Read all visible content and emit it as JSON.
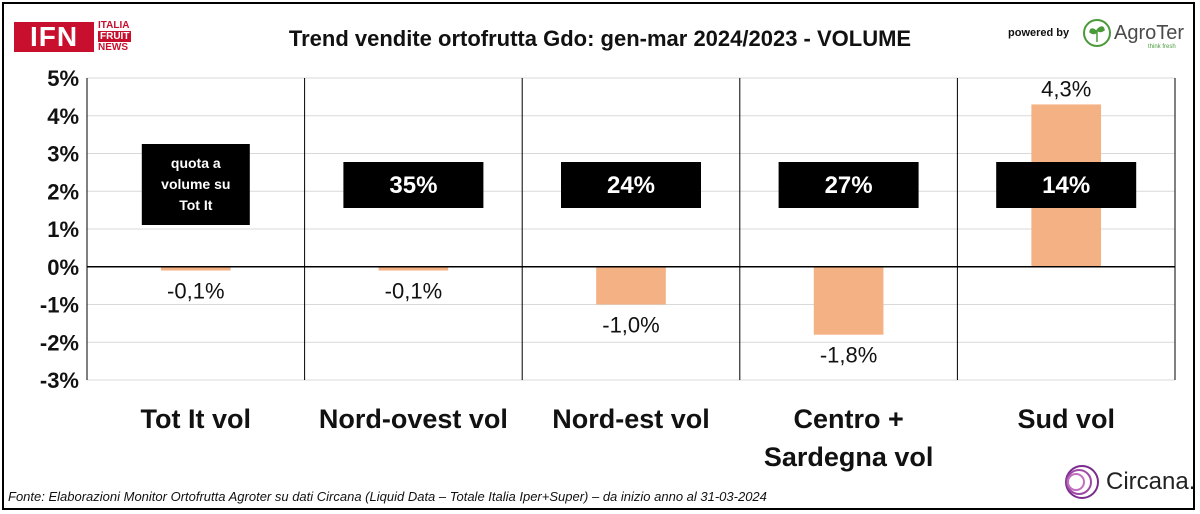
{
  "header": {
    "title": "Trend vendite ortofrutta Gdo: gen-mar 2024/2023 - VOLUME",
    "ifn_logo_main": "IFN",
    "ifn_logo_line1": "ITALIA",
    "ifn_logo_line2": "FRUIT",
    "ifn_logo_line3": "NEWS",
    "powered_by": "powered by",
    "agroter_name": "AgroTer",
    "agroter_tagline": "think fresh"
  },
  "footer": {
    "source": "Fonte: Elaborazioni Monitor Ortofrutta Agroter su dati Circana (Liquid Data – Totale Italia Iper+Super) –  da inizio anno al 31-03-2024",
    "circana_name": "Circana."
  },
  "colors": {
    "bar": "#f4b183",
    "box_bg": "#000000",
    "box_text": "#ffffff",
    "brand_red": "#c8102e",
    "agroter_green": "#4a9a3a",
    "circana_purple": "#7b2d8e"
  },
  "chart_data": {
    "type": "bar",
    "title": "Trend vendite ortofrutta Gdo: gen-mar 2024/2023 - VOLUME",
    "categories": [
      [
        "Tot It  vol"
      ],
      [
        "Nord-ovest vol"
      ],
      [
        "Nord-est vol"
      ],
      [
        "Centro +",
        "Sardegna vol"
      ],
      [
        "Sud vol"
      ]
    ],
    "values": [
      -0.1,
      -0.1,
      -1.0,
      -1.8,
      4.3
    ],
    "value_labels": [
      "-0,1%",
      "-0,1%",
      "-1,0%",
      "-1,8%",
      "4,3%"
    ],
    "share_labels": [
      [
        "quota a",
        "volume su",
        "Tot It"
      ],
      [
        "35%"
      ],
      [
        "24%"
      ],
      [
        "27%"
      ],
      [
        "14%"
      ]
    ],
    "ylim": [
      -3,
      5
    ],
    "yticks": [
      -3,
      -2,
      -1,
      0,
      1,
      2,
      3,
      4,
      5
    ],
    "ytick_labels": [
      "-3%",
      "-2%",
      "-1%",
      "0%",
      "1%",
      "2%",
      "3%",
      "4%",
      "5%"
    ],
    "xlabel": "",
    "ylabel": "",
    "grid": true,
    "legend": "none"
  }
}
